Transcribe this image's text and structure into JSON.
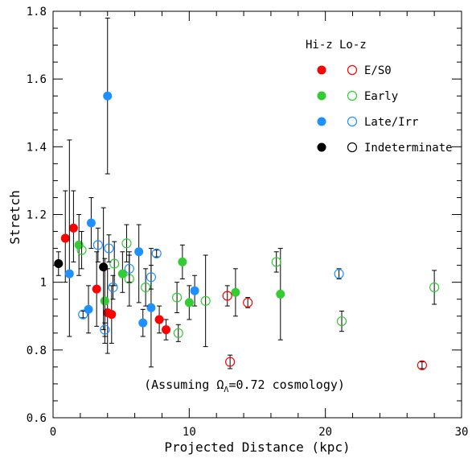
{
  "chart_data": {
    "type": "scatter",
    "xlabel": "Projected Distance (kpc)",
    "ylabel": "Stretch",
    "xlim": [
      0,
      30
    ],
    "ylim": [
      0.6,
      1.8
    ],
    "x_ticks": [
      "0",
      "10",
      "20",
      "30"
    ],
    "y_ticks": [
      "0.6",
      "0.8",
      "1",
      "1.2",
      "1.4",
      "1.6",
      "1.8"
    ],
    "legend": {
      "position": "top-right",
      "header_hi": "Hi-z",
      "header_lo": "Lo-z",
      "entries": [
        {
          "label": "E/S0",
          "color": "#ff0000"
        },
        {
          "label": "Early",
          "color": "#33cc33"
        },
        {
          "label": "Late/Irr",
          "color": "#1e90ff"
        },
        {
          "label": "Indeterminate",
          "color": "#000000"
        }
      ]
    },
    "annotation": {
      "prefix": "(Assuming ",
      "omega": "Ω",
      "sub": "Λ",
      "suffix": "=0.72 cosmology)"
    },
    "series": [
      {
        "name": "Hi-z E/S0",
        "filled": true,
        "color": "#ff0000",
        "points": [
          {
            "x": 0.9,
            "y": 1.13,
            "lo": 1.0,
            "hi": 1.27
          },
          {
            "x": 1.5,
            "y": 1.16,
            "lo": 1.06,
            "hi": 1.27
          },
          {
            "x": 3.2,
            "y": 0.98,
            "lo": 0.87,
            "hi": 1.09
          },
          {
            "x": 4.0,
            "y": 0.91,
            "lo": 0.79,
            "hi": 1.04
          },
          {
            "x": 4.3,
            "y": 0.905,
            "lo": 0.82,
            "hi": 0.99
          },
          {
            "x": 7.8,
            "y": 0.89,
            "lo": 0.85,
            "hi": 0.93
          },
          {
            "x": 8.3,
            "y": 0.86,
            "lo": 0.83,
            "hi": 0.89
          }
        ]
      },
      {
        "name": "Hi-z Early",
        "filled": true,
        "color": "#33cc33",
        "points": [
          {
            "x": 1.9,
            "y": 1.11,
            "lo": 1.02,
            "hi": 1.2
          },
          {
            "x": 3.8,
            "y": 0.945,
            "lo": 0.82,
            "hi": 1.07
          },
          {
            "x": 5.1,
            "y": 1.025,
            "lo": 0.97,
            "hi": 1.09
          },
          {
            "x": 9.5,
            "y": 1.06,
            "lo": 1.01,
            "hi": 1.11
          },
          {
            "x": 10.0,
            "y": 0.94,
            "lo": 0.89,
            "hi": 0.99
          },
          {
            "x": 13.4,
            "y": 0.97,
            "lo": 0.9,
            "hi": 1.04
          },
          {
            "x": 16.7,
            "y": 0.965,
            "lo": 0.83,
            "hi": 1.1
          }
        ]
      },
      {
        "name": "Hi-z Late/Irr",
        "filled": true,
        "color": "#1e90ff",
        "points": [
          {
            "x": 1.2,
            "y": 1.025,
            "lo": 0.84,
            "hi": 1.42
          },
          {
            "x": 2.6,
            "y": 0.92,
            "lo": 0.85,
            "hi": 0.99
          },
          {
            "x": 2.8,
            "y": 1.175,
            "lo": 1.1,
            "hi": 1.25
          },
          {
            "x": 4.0,
            "y": 1.55,
            "lo": 1.32,
            "hi": 1.78
          },
          {
            "x": 6.3,
            "y": 1.09,
            "lo": 0.94,
            "hi": 1.17
          },
          {
            "x": 6.6,
            "y": 0.88,
            "lo": 0.84,
            "hi": 0.92
          },
          {
            "x": 7.2,
            "y": 0.925,
            "lo": 0.75,
            "hi": 1.1
          },
          {
            "x": 10.4,
            "y": 0.975,
            "lo": 0.93,
            "hi": 1.02
          }
        ]
      },
      {
        "name": "Hi-z Indeterminate",
        "filled": true,
        "color": "#000000",
        "points": [
          {
            "x": 0.4,
            "y": 1.055,
            "lo": 1.02,
            "hi": 1.09
          },
          {
            "x": 3.7,
            "y": 1.045,
            "lo": 0.86,
            "hi": 1.22
          }
        ]
      },
      {
        "name": "Lo-z E/S0",
        "filled": false,
        "color": "#ff0000",
        "points": [
          {
            "x": 12.8,
            "y": 0.96,
            "lo": 0.93,
            "hi": 0.99
          },
          {
            "x": 13.0,
            "y": 0.765,
            "lo": 0.745,
            "hi": 0.785
          },
          {
            "x": 14.3,
            "y": 0.94,
            "lo": 0.925,
            "hi": 0.955
          },
          {
            "x": 27.1,
            "y": 0.755,
            "lo": 0.745,
            "hi": 0.765
          }
        ]
      },
      {
        "name": "Lo-z Early",
        "filled": false,
        "color": "#33cc33",
        "points": [
          {
            "x": 2.1,
            "y": 1.095,
            "lo": 1.04,
            "hi": 1.15
          },
          {
            "x": 4.5,
            "y": 1.055,
            "lo": 0.99,
            "hi": 1.12
          },
          {
            "x": 5.4,
            "y": 1.115,
            "lo": 1.06,
            "hi": 1.17
          },
          {
            "x": 5.6,
            "y": 1.01,
            "lo": 0.93,
            "hi": 1.09
          },
          {
            "x": 6.8,
            "y": 0.985,
            "lo": 0.93,
            "hi": 1.04
          },
          {
            "x": 9.1,
            "y": 0.955,
            "lo": 0.91,
            "hi": 1.0
          },
          {
            "x": 9.2,
            "y": 0.85,
            "lo": 0.825,
            "hi": 0.875
          },
          {
            "x": 11.2,
            "y": 0.945,
            "lo": 0.81,
            "hi": 1.08
          },
          {
            "x": 16.4,
            "y": 1.06,
            "lo": 1.03,
            "hi": 1.09
          },
          {
            "x": 21.2,
            "y": 0.885,
            "lo": 0.855,
            "hi": 0.915
          },
          {
            "x": 28.0,
            "y": 0.985,
            "lo": 0.935,
            "hi": 1.035
          }
        ]
      },
      {
        "name": "Lo-z Late/Irr",
        "filled": false,
        "color": "#1e90ff",
        "points": [
          {
            "x": 2.2,
            "y": 0.905,
            "lo": 0.895,
            "hi": 0.915
          },
          {
            "x": 3.3,
            "y": 1.11,
            "lo": 1.06,
            "hi": 1.16
          },
          {
            "x": 3.8,
            "y": 0.86,
            "lo": 0.84,
            "hi": 0.88
          },
          {
            "x": 4.1,
            "y": 1.1,
            "lo": 1.06,
            "hi": 1.14
          },
          {
            "x": 4.4,
            "y": 0.985,
            "lo": 0.95,
            "hi": 1.02
          },
          {
            "x": 5.6,
            "y": 1.04,
            "lo": 1.0,
            "hi": 1.08
          },
          {
            "x": 7.2,
            "y": 1.015,
            "lo": 0.98,
            "hi": 1.05
          },
          {
            "x": 7.6,
            "y": 1.085,
            "lo": 1.075,
            "hi": 1.095
          },
          {
            "x": 21.0,
            "y": 1.025,
            "lo": 1.01,
            "hi": 1.04
          }
        ]
      }
    ]
  }
}
